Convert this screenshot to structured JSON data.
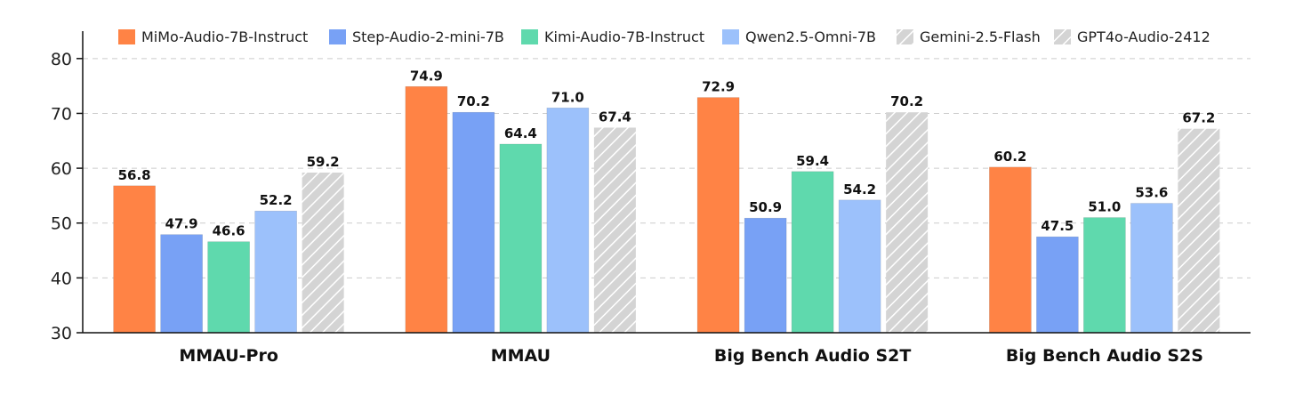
{
  "chart_data": {
    "type": "bar",
    "categories": [
      "MMAU-Pro",
      "MMAU",
      "Big Bench Audio S2T",
      "Big Bench Audio S2S"
    ],
    "series": [
      {
        "name": "MiMo-Audio-7B-Instruct",
        "color": "#ff8345",
        "pattern": "solid",
        "values": [
          56.8,
          74.9,
          72.9,
          60.2
        ]
      },
      {
        "name": "Step-Audio-2-mini-7B",
        "color": "#78a1f5",
        "pattern": "solid",
        "values": [
          47.9,
          70.2,
          50.9,
          47.5
        ]
      },
      {
        "name": "Kimi-Audio-7B-Instruct",
        "color": "#5fd9ad",
        "pattern": "solid",
        "values": [
          46.6,
          64.4,
          59.4,
          51.0
        ]
      },
      {
        "name": "Qwen2.5-Omni-7B",
        "color": "#9cc1fb",
        "pattern": "solid",
        "values": [
          52.2,
          71.0,
          54.2,
          53.6
        ]
      },
      {
        "name": "Gemini-2.5-Flash",
        "color": "#d4d4d4",
        "pattern": "hatched",
        "values": [
          null,
          67.4,
          null,
          null
        ]
      },
      {
        "name": "GPT4o-Audio-2412",
        "color": "#d4d4d4",
        "pattern": "hatched",
        "values": [
          59.2,
          null,
          70.2,
          67.2
        ]
      }
    ],
    "value_labels": [
      [
        "56.8",
        "47.9",
        "46.6",
        "52.2",
        "",
        "59.2"
      ],
      [
        "74.9",
        "70.2",
        "64.4",
        "71.0",
        "67.4",
        ""
      ],
      [
        "72.9",
        "50.9",
        "59.4",
        "54.2",
        "",
        "70.2"
      ],
      [
        "60.2",
        "47.5",
        "51.0",
        "53.6",
        "",
        "67.2"
      ]
    ],
    "yticks": [
      "30",
      "40",
      "50",
      "60",
      "70",
      "80"
    ],
    "ylim": [
      30,
      85
    ],
    "grid": true,
    "legend_position": "top"
  }
}
